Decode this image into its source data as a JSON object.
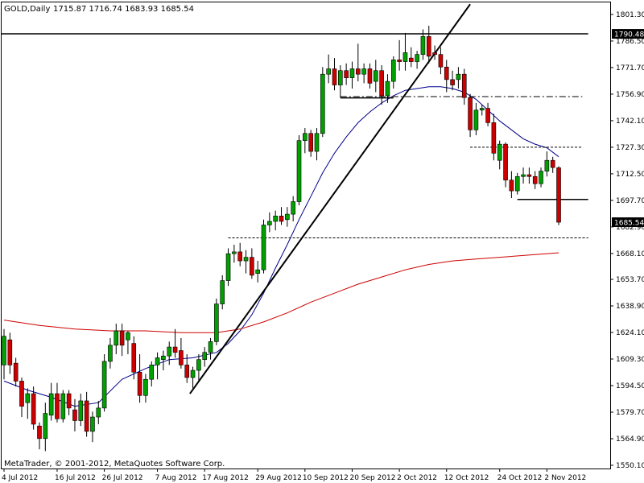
{
  "header": {
    "symbol_timeframe": "GOLD,Daily",
    "ohlc": "1715.87 1716.74 1683.93 1685.54"
  },
  "footer": {
    "copyright": "MetaTrader, © 2001-2012, MetaQuotes Software Corp."
  },
  "chart_data": {
    "type": "candlestick",
    "title": "GOLD,Daily",
    "ylim": [
      1550.1,
      1808.0
    ],
    "y_ticks": [
      "1801.30",
      "1786.50",
      "1771.70",
      "1756.90",
      "1742.10",
      "1727.30",
      "1712.50",
      "1697.70",
      "1682.90",
      "1668.10",
      "1653.70",
      "1638.90",
      "1624.10",
      "1609.30",
      "1594.50",
      "1579.70",
      "1564.90",
      "1550.10"
    ],
    "x_ticks": [
      "4 Jul 2012",
      "16 Jul 2012",
      "26 Jul 2012",
      "7 Aug 2012",
      "17 Aug 2012",
      "29 Aug 2012",
      "10 Sep 2012",
      "20 Sep 2012",
      "2 Oct 2012",
      "12 Oct 2012",
      "24 Oct 2012",
      "2 Nov 2012"
    ],
    "price_labels": [
      {
        "text": "1790.48",
        "value": 1790.48
      },
      {
        "text": "1685.54",
        "value": 1685.54
      }
    ],
    "candles": [
      {
        "o": 1606.0,
        "h": 1626.0,
        "l": 1598.0,
        "c": 1622.0
      },
      {
        "o": 1620.0,
        "h": 1624.0,
        "l": 1601.0,
        "c": 1606.0
      },
      {
        "o": 1607.0,
        "h": 1610.0,
        "l": 1594.0,
        "c": 1597.0
      },
      {
        "o": 1597.0,
        "h": 1599.0,
        "l": 1577.0,
        "c": 1583.0
      },
      {
        "o": 1585.0,
        "h": 1593.0,
        "l": 1576.0,
        "c": 1590.0
      },
      {
        "o": 1590.0,
        "h": 1594.0,
        "l": 1570.0,
        "c": 1573.0
      },
      {
        "o": 1572.0,
        "h": 1574.0,
        "l": 1559.0,
        "c": 1565.0
      },
      {
        "o": 1565.0,
        "h": 1585.0,
        "l": 1558.0,
        "c": 1579.0
      },
      {
        "o": 1578.0,
        "h": 1596.0,
        "l": 1575.0,
        "c": 1590.0
      },
      {
        "o": 1590.0,
        "h": 1596.0,
        "l": 1574.0,
        "c": 1576.0
      },
      {
        "o": 1576.0,
        "h": 1592.0,
        "l": 1574.0,
        "c": 1590.0
      },
      {
        "o": 1590.0,
        "h": 1592.0,
        "l": 1578.0,
        "c": 1582.0
      },
      {
        "o": 1581.0,
        "h": 1587.0,
        "l": 1569.0,
        "c": 1575.0
      },
      {
        "o": 1575.0,
        "h": 1590.0,
        "l": 1572.0,
        "c": 1586.0
      },
      {
        "o": 1586.0,
        "h": 1591.0,
        "l": 1566.0,
        "c": 1569.0
      },
      {
        "o": 1569.0,
        "h": 1580.0,
        "l": 1563.0,
        "c": 1577.0
      },
      {
        "o": 1577.0,
        "h": 1586.0,
        "l": 1573.0,
        "c": 1582.0
      },
      {
        "o": 1582.0,
        "h": 1612.0,
        "l": 1580.0,
        "c": 1608.0
      },
      {
        "o": 1608.0,
        "h": 1621.0,
        "l": 1604.0,
        "c": 1617.0
      },
      {
        "o": 1617.0,
        "h": 1629.0,
        "l": 1612.0,
        "c": 1625.0
      },
      {
        "o": 1625.0,
        "h": 1629.0,
        "l": 1611.0,
        "c": 1617.0
      },
      {
        "o": 1620.0,
        "h": 1625.0,
        "l": 1612.0,
        "c": 1624.0
      },
      {
        "o": 1618.0,
        "h": 1622.0,
        "l": 1598.0,
        "c": 1602.0
      },
      {
        "o": 1602.0,
        "h": 1612.0,
        "l": 1585.0,
        "c": 1589.0
      },
      {
        "o": 1589.0,
        "h": 1601.0,
        "l": 1585.0,
        "c": 1598.0
      },
      {
        "o": 1598.0,
        "h": 1608.0,
        "l": 1594.0,
        "c": 1606.0
      },
      {
        "o": 1606.0,
        "h": 1613.0,
        "l": 1598.0,
        "c": 1610.0
      },
      {
        "o": 1609.0,
        "h": 1614.0,
        "l": 1603.0,
        "c": 1611.0
      },
      {
        "o": 1611.0,
        "h": 1619.0,
        "l": 1606.0,
        "c": 1616.0
      },
      {
        "o": 1616.0,
        "h": 1626.0,
        "l": 1610.0,
        "c": 1613.0
      },
      {
        "o": 1614.0,
        "h": 1621.0,
        "l": 1604.0,
        "c": 1606.0
      },
      {
        "o": 1606.0,
        "h": 1612.0,
        "l": 1596.0,
        "c": 1599.0
      },
      {
        "o": 1599.0,
        "h": 1605.0,
        "l": 1593.0,
        "c": 1603.0
      },
      {
        "o": 1603.0,
        "h": 1612.0,
        "l": 1597.0,
        "c": 1609.0
      },
      {
        "o": 1609.0,
        "h": 1616.0,
        "l": 1605.0,
        "c": 1613.0
      },
      {
        "o": 1613.0,
        "h": 1621.0,
        "l": 1609.0,
        "c": 1619.0
      },
      {
        "o": 1619.0,
        "h": 1643.0,
        "l": 1617.0,
        "c": 1640.0
      },
      {
        "o": 1640.0,
        "h": 1656.0,
        "l": 1637.0,
        "c": 1653.0
      },
      {
        "o": 1653.0,
        "h": 1671.0,
        "l": 1650.0,
        "c": 1668.0
      },
      {
        "o": 1668.0,
        "h": 1673.0,
        "l": 1663.0,
        "c": 1669.0
      },
      {
        "o": 1669.0,
        "h": 1674.0,
        "l": 1661.0,
        "c": 1664.0
      },
      {
        "o": 1664.0,
        "h": 1670.0,
        "l": 1657.0,
        "c": 1666.0
      },
      {
        "o": 1666.0,
        "h": 1671.0,
        "l": 1654.0,
        "c": 1656.0
      },
      {
        "o": 1657.0,
        "h": 1664.0,
        "l": 1652.0,
        "c": 1659.0
      },
      {
        "o": 1659.0,
        "h": 1687.0,
        "l": 1657.0,
        "c": 1684.0
      },
      {
        "o": 1684.0,
        "h": 1691.0,
        "l": 1680.0,
        "c": 1686.0
      },
      {
        "o": 1686.0,
        "h": 1692.0,
        "l": 1681.0,
        "c": 1689.0
      },
      {
        "o": 1689.0,
        "h": 1694.0,
        "l": 1684.0,
        "c": 1686.0
      },
      {
        "o": 1687.0,
        "h": 1694.0,
        "l": 1683.0,
        "c": 1690.0
      },
      {
        "o": 1690.0,
        "h": 1700.0,
        "l": 1686.0,
        "c": 1697.0
      },
      {
        "o": 1697.0,
        "h": 1734.0,
        "l": 1695.0,
        "c": 1731.0
      },
      {
        "o": 1731.0,
        "h": 1738.0,
        "l": 1724.0,
        "c": 1735.0
      },
      {
        "o": 1735.0,
        "h": 1737.0,
        "l": 1722.0,
        "c": 1725.0
      },
      {
        "o": 1725.0,
        "h": 1738.0,
        "l": 1720.0,
        "c": 1735.0
      },
      {
        "o": 1735.0,
        "h": 1772.0,
        "l": 1733.0,
        "c": 1768.0
      },
      {
        "o": 1768.0,
        "h": 1779.0,
        "l": 1763.0,
        "c": 1771.0
      },
      {
        "o": 1771.0,
        "h": 1777.0,
        "l": 1759.0,
        "c": 1762.0
      },
      {
        "o": 1762.0,
        "h": 1773.0,
        "l": 1755.0,
        "c": 1770.0
      },
      {
        "o": 1770.0,
        "h": 1774.0,
        "l": 1762.0,
        "c": 1766.0
      },
      {
        "o": 1766.0,
        "h": 1775.0,
        "l": 1760.0,
        "c": 1771.0
      },
      {
        "o": 1771.0,
        "h": 1785.0,
        "l": 1764.0,
        "c": 1768.0
      },
      {
        "o": 1768.0,
        "h": 1774.0,
        "l": 1763.0,
        "c": 1771.0
      },
      {
        "o": 1771.0,
        "h": 1774.0,
        "l": 1760.0,
        "c": 1763.0
      },
      {
        "o": 1764.0,
        "h": 1776.0,
        "l": 1758.0,
        "c": 1770.0
      },
      {
        "o": 1770.0,
        "h": 1773.0,
        "l": 1751.0,
        "c": 1756.0
      },
      {
        "o": 1756.0,
        "h": 1768.0,
        "l": 1752.0,
        "c": 1764.0
      },
      {
        "o": 1764.0,
        "h": 1778.0,
        "l": 1760.0,
        "c": 1776.0
      },
      {
        "o": 1776.0,
        "h": 1787.0,
        "l": 1770.0,
        "c": 1775.0
      },
      {
        "o": 1775.0,
        "h": 1791.0,
        "l": 1770.0,
        "c": 1780.0
      },
      {
        "o": 1777.0,
        "h": 1783.0,
        "l": 1772.0,
        "c": 1775.0
      },
      {
        "o": 1775.0,
        "h": 1781.0,
        "l": 1771.0,
        "c": 1779.0
      },
      {
        "o": 1779.0,
        "h": 1793.0,
        "l": 1776.0,
        "c": 1789.0
      },
      {
        "o": 1789.0,
        "h": 1795.0,
        "l": 1774.0,
        "c": 1778.0
      },
      {
        "o": 1780.0,
        "h": 1784.0,
        "l": 1776.0,
        "c": 1779.0
      },
      {
        "o": 1779.0,
        "h": 1783.0,
        "l": 1768.0,
        "c": 1772.0
      },
      {
        "o": 1772.0,
        "h": 1776.0,
        "l": 1758.0,
        "c": 1765.0
      },
      {
        "o": 1765.0,
        "h": 1770.0,
        "l": 1759.0,
        "c": 1762.0
      },
      {
        "o": 1765.0,
        "h": 1772.0,
        "l": 1760.0,
        "c": 1768.0
      },
      {
        "o": 1768.0,
        "h": 1771.0,
        "l": 1751.0,
        "c": 1755.0
      },
      {
        "o": 1755.0,
        "h": 1757.0,
        "l": 1733.0,
        "c": 1737.0
      },
      {
        "o": 1737.0,
        "h": 1752.0,
        "l": 1734.0,
        "c": 1748.0
      },
      {
        "o": 1748.0,
        "h": 1751.0,
        "l": 1745.0,
        "c": 1749.0
      },
      {
        "o": 1749.0,
        "h": 1752.0,
        "l": 1739.0,
        "c": 1741.0
      },
      {
        "o": 1741.0,
        "h": 1746.0,
        "l": 1720.0,
        "c": 1724.0
      },
      {
        "o": 1720.0,
        "h": 1731.0,
        "l": 1715.0,
        "c": 1729.0
      },
      {
        "o": 1729.0,
        "h": 1730.0,
        "l": 1705.0,
        "c": 1709.0
      },
      {
        "o": 1709.0,
        "h": 1714.0,
        "l": 1699.0,
        "c": 1703.0
      },
      {
        "o": 1703.0,
        "h": 1713.0,
        "l": 1701.0,
        "c": 1711.0
      },
      {
        "o": 1711.0,
        "h": 1716.0,
        "l": 1707.0,
        "c": 1712.0
      },
      {
        "o": 1712.0,
        "h": 1716.0,
        "l": 1707.0,
        "c": 1711.0
      },
      {
        "o": 1711.0,
        "h": 1714.0,
        "l": 1704.0,
        "c": 1707.0
      },
      {
        "o": 1707.0,
        "h": 1716.0,
        "l": 1705.0,
        "c": 1714.0
      },
      {
        "o": 1714.0,
        "h": 1725.0,
        "l": 1711.0,
        "c": 1720.0
      },
      {
        "o": 1720.0,
        "h": 1722.0,
        "l": 1713.0,
        "c": 1716.0
      },
      {
        "o": 1715.87,
        "h": 1716.74,
        "l": 1683.93,
        "c": 1685.54
      }
    ],
    "moving_averages": [
      {
        "color": "#00008b",
        "points": [
          {
            "i": 0,
            "v": 1597.0
          },
          {
            "i": 4,
            "v": 1592.0
          },
          {
            "i": 8,
            "v": 1588.0
          },
          {
            "i": 12,
            "v": 1583.0
          },
          {
            "i": 16,
            "v": 1585.0
          },
          {
            "i": 20,
            "v": 1598.0
          },
          {
            "i": 24,
            "v": 1604.0
          },
          {
            "i": 28,
            "v": 1609.0
          },
          {
            "i": 32,
            "v": 1610.0
          },
          {
            "i": 36,
            "v": 1613.0
          },
          {
            "i": 38,
            "v": 1618.0
          },
          {
            "i": 40,
            "v": 1625.0
          },
          {
            "i": 42,
            "v": 1634.0
          },
          {
            "i": 44,
            "v": 1646.0
          },
          {
            "i": 46,
            "v": 1660.0
          },
          {
            "i": 48,
            "v": 1673.0
          },
          {
            "i": 50,
            "v": 1687.0
          },
          {
            "i": 52,
            "v": 1700.0
          },
          {
            "i": 54,
            "v": 1713.0
          },
          {
            "i": 56,
            "v": 1724.0
          },
          {
            "i": 58,
            "v": 1733.0
          },
          {
            "i": 60,
            "v": 1741.0
          },
          {
            "i": 62,
            "v": 1747.0
          },
          {
            "i": 64,
            "v": 1752.0
          },
          {
            "i": 66,
            "v": 1756.0
          },
          {
            "i": 68,
            "v": 1759.0
          },
          {
            "i": 70,
            "v": 1760.0
          },
          {
            "i": 72,
            "v": 1761.0
          },
          {
            "i": 74,
            "v": 1761.0
          },
          {
            "i": 76,
            "v": 1760.0
          },
          {
            "i": 78,
            "v": 1758.0
          },
          {
            "i": 80,
            "v": 1754.0
          },
          {
            "i": 82,
            "v": 1748.0
          },
          {
            "i": 84,
            "v": 1742.0
          },
          {
            "i": 86,
            "v": 1737.0
          },
          {
            "i": 88,
            "v": 1732.0
          },
          {
            "i": 90,
            "v": 1729.0
          },
          {
            "i": 92,
            "v": 1727.0
          },
          {
            "i": 94,
            "v": 1722.0
          }
        ]
      },
      {
        "color": "#cc0000",
        "points": [
          {
            "i": 0,
            "v": 1631.0
          },
          {
            "i": 6,
            "v": 1628.0
          },
          {
            "i": 12,
            "v": 1626.0
          },
          {
            "i": 18,
            "v": 1625.0
          },
          {
            "i": 24,
            "v": 1625.0
          },
          {
            "i": 30,
            "v": 1624.0
          },
          {
            "i": 36,
            "v": 1624.0
          },
          {
            "i": 40,
            "v": 1626.0
          },
          {
            "i": 44,
            "v": 1630.0
          },
          {
            "i": 48,
            "v": 1635.0
          },
          {
            "i": 52,
            "v": 1641.0
          },
          {
            "i": 56,
            "v": 1646.0
          },
          {
            "i": 60,
            "v": 1651.0
          },
          {
            "i": 64,
            "v": 1655.0
          },
          {
            "i": 68,
            "v": 1659.0
          },
          {
            "i": 72,
            "v": 1662.0
          },
          {
            "i": 76,
            "v": 1664.0
          },
          {
            "i": 80,
            "v": 1665.0
          },
          {
            "i": 84,
            "v": 1666.0
          },
          {
            "i": 88,
            "v": 1667.0
          },
          {
            "i": 92,
            "v": 1668.0
          },
          {
            "i": 94,
            "v": 1668.5
          }
        ]
      }
    ],
    "annotations": {
      "horizontal_levels": [
        {
          "value": 1790.48,
          "style": "solid",
          "from_i": -1,
          "to_i": 99
        },
        {
          "value": 1755.5,
          "style": "dashdot",
          "from_i": 57,
          "to_i": 98
        },
        {
          "value": 1754.8,
          "style": "solid",
          "from_i": 57,
          "to_i": 66
        },
        {
          "value": 1727.3,
          "style": "dashed",
          "from_i": 79,
          "to_i": 98
        },
        {
          "value": 1698.2,
          "style": "solid",
          "from_i": 87,
          "to_i": 99
        },
        {
          "value": 1676.8,
          "style": "dashed",
          "from_i": 38,
          "to_i": 99
        }
      ],
      "trendlines": [
        {
          "from_i": 31.5,
          "from_v": 1590.0,
          "to_i": 79,
          "to_v": 1807.0
        }
      ]
    },
    "colors": {
      "up": "#00a000",
      "down": "#cc0000",
      "axis": "#000000",
      "background": "#ffffff"
    },
    "grid": false
  }
}
